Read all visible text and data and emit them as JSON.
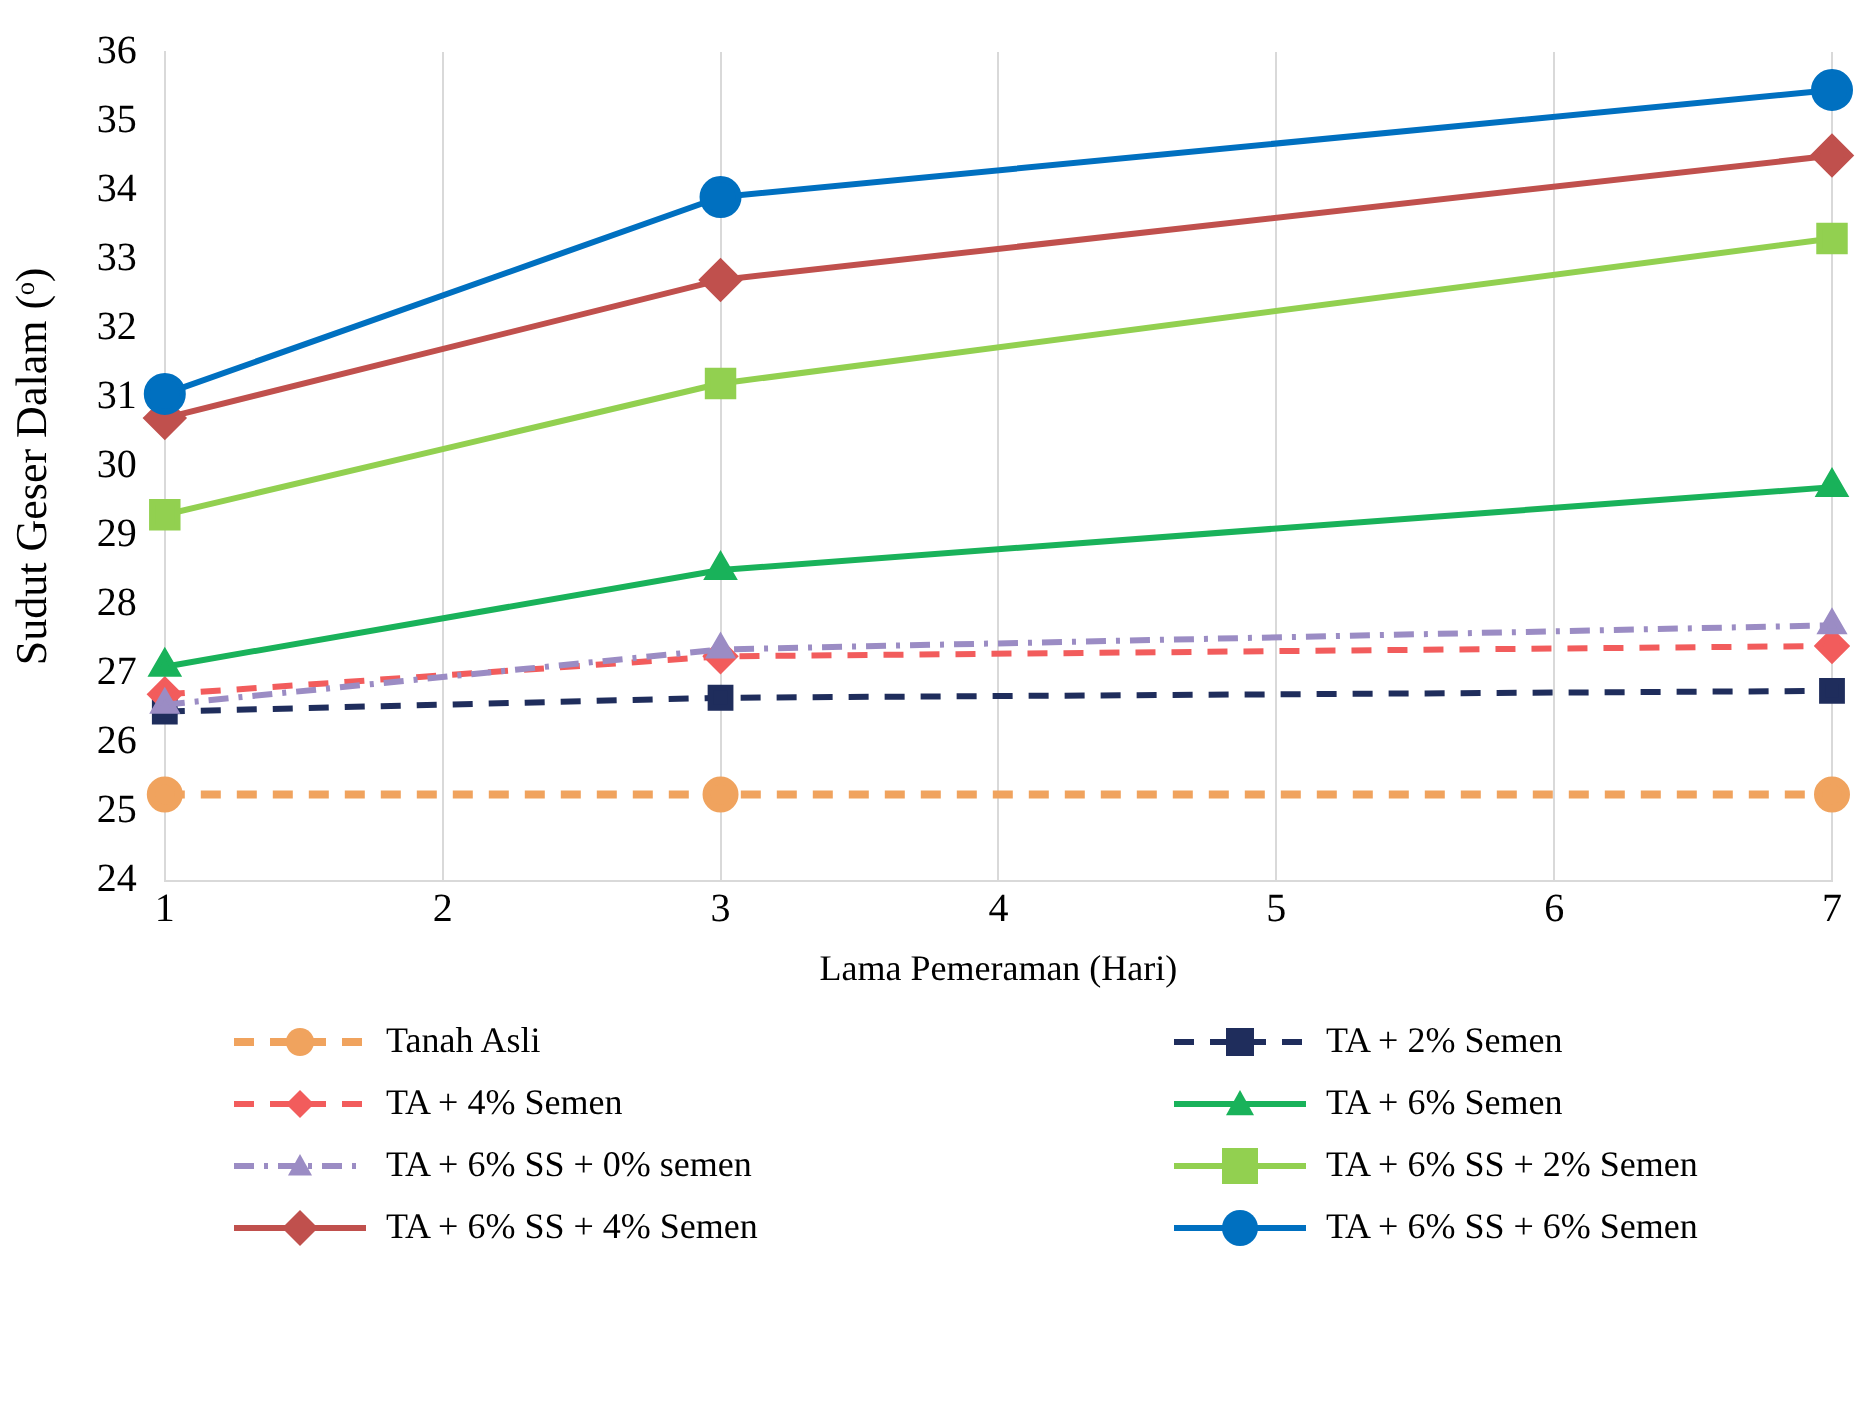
{
  "chart_data": {
    "type": "line",
    "xlabel": "Lama Pemeraman (Hari)",
    "ylabel": "Sudut Geser Dalam (ᵒ)",
    "x": [
      1,
      3,
      7
    ],
    "xlim": [
      1,
      7
    ],
    "xticks": [
      1,
      2,
      3,
      4,
      5,
      6,
      7
    ],
    "ylim": [
      24,
      36
    ],
    "yticks": [
      24,
      25,
      26,
      27,
      28,
      29,
      30,
      31,
      32,
      33,
      34,
      35,
      36
    ],
    "grid": "x",
    "legend": "bottom",
    "series": [
      {
        "name": "Tanah Asli",
        "color": "#f0a35e",
        "line_style": "dashed",
        "marker": "circle",
        "values": [
          25.25,
          25.25,
          25.25
        ]
      },
      {
        "name": "TA + 2% Semen",
        "color": "#1f2d5c",
        "line_style": "dashed",
        "marker": "square",
        "values": [
          26.45,
          26.65,
          26.75
        ]
      },
      {
        "name": "TA + 4% Semen",
        "color": "#f25c5c",
        "line_style": "dashed",
        "marker": "diamond",
        "values": [
          26.7,
          27.25,
          27.4
        ]
      },
      {
        "name": "TA + 6% Semen",
        "color": "#19b25a",
        "line_style": "solid",
        "marker": "triangle",
        "values": [
          27.1,
          28.5,
          29.7
        ]
      },
      {
        "name": "TA + 6% SS + 0% semen",
        "color": "#9b8cc4",
        "line_style": "dashdot",
        "marker": "triangle",
        "values": [
          26.55,
          27.35,
          27.7
        ]
      },
      {
        "name": "TA + 6% SS + 2% Semen",
        "color": "#92d050",
        "line_style": "solid",
        "marker": "square",
        "values": [
          29.3,
          31.2,
          33.3
        ]
      },
      {
        "name": "TA + 6% SS + 4% Semen",
        "color": "#c0504d",
        "line_style": "solid",
        "marker": "diamond",
        "values": [
          30.7,
          32.7,
          34.5
        ]
      },
      {
        "name": "TA + 6% SS + 6% Semen",
        "color": "#0070c0",
        "line_style": "solid",
        "marker": "circle",
        "values": [
          31.05,
          33.9,
          35.45
        ]
      }
    ]
  }
}
